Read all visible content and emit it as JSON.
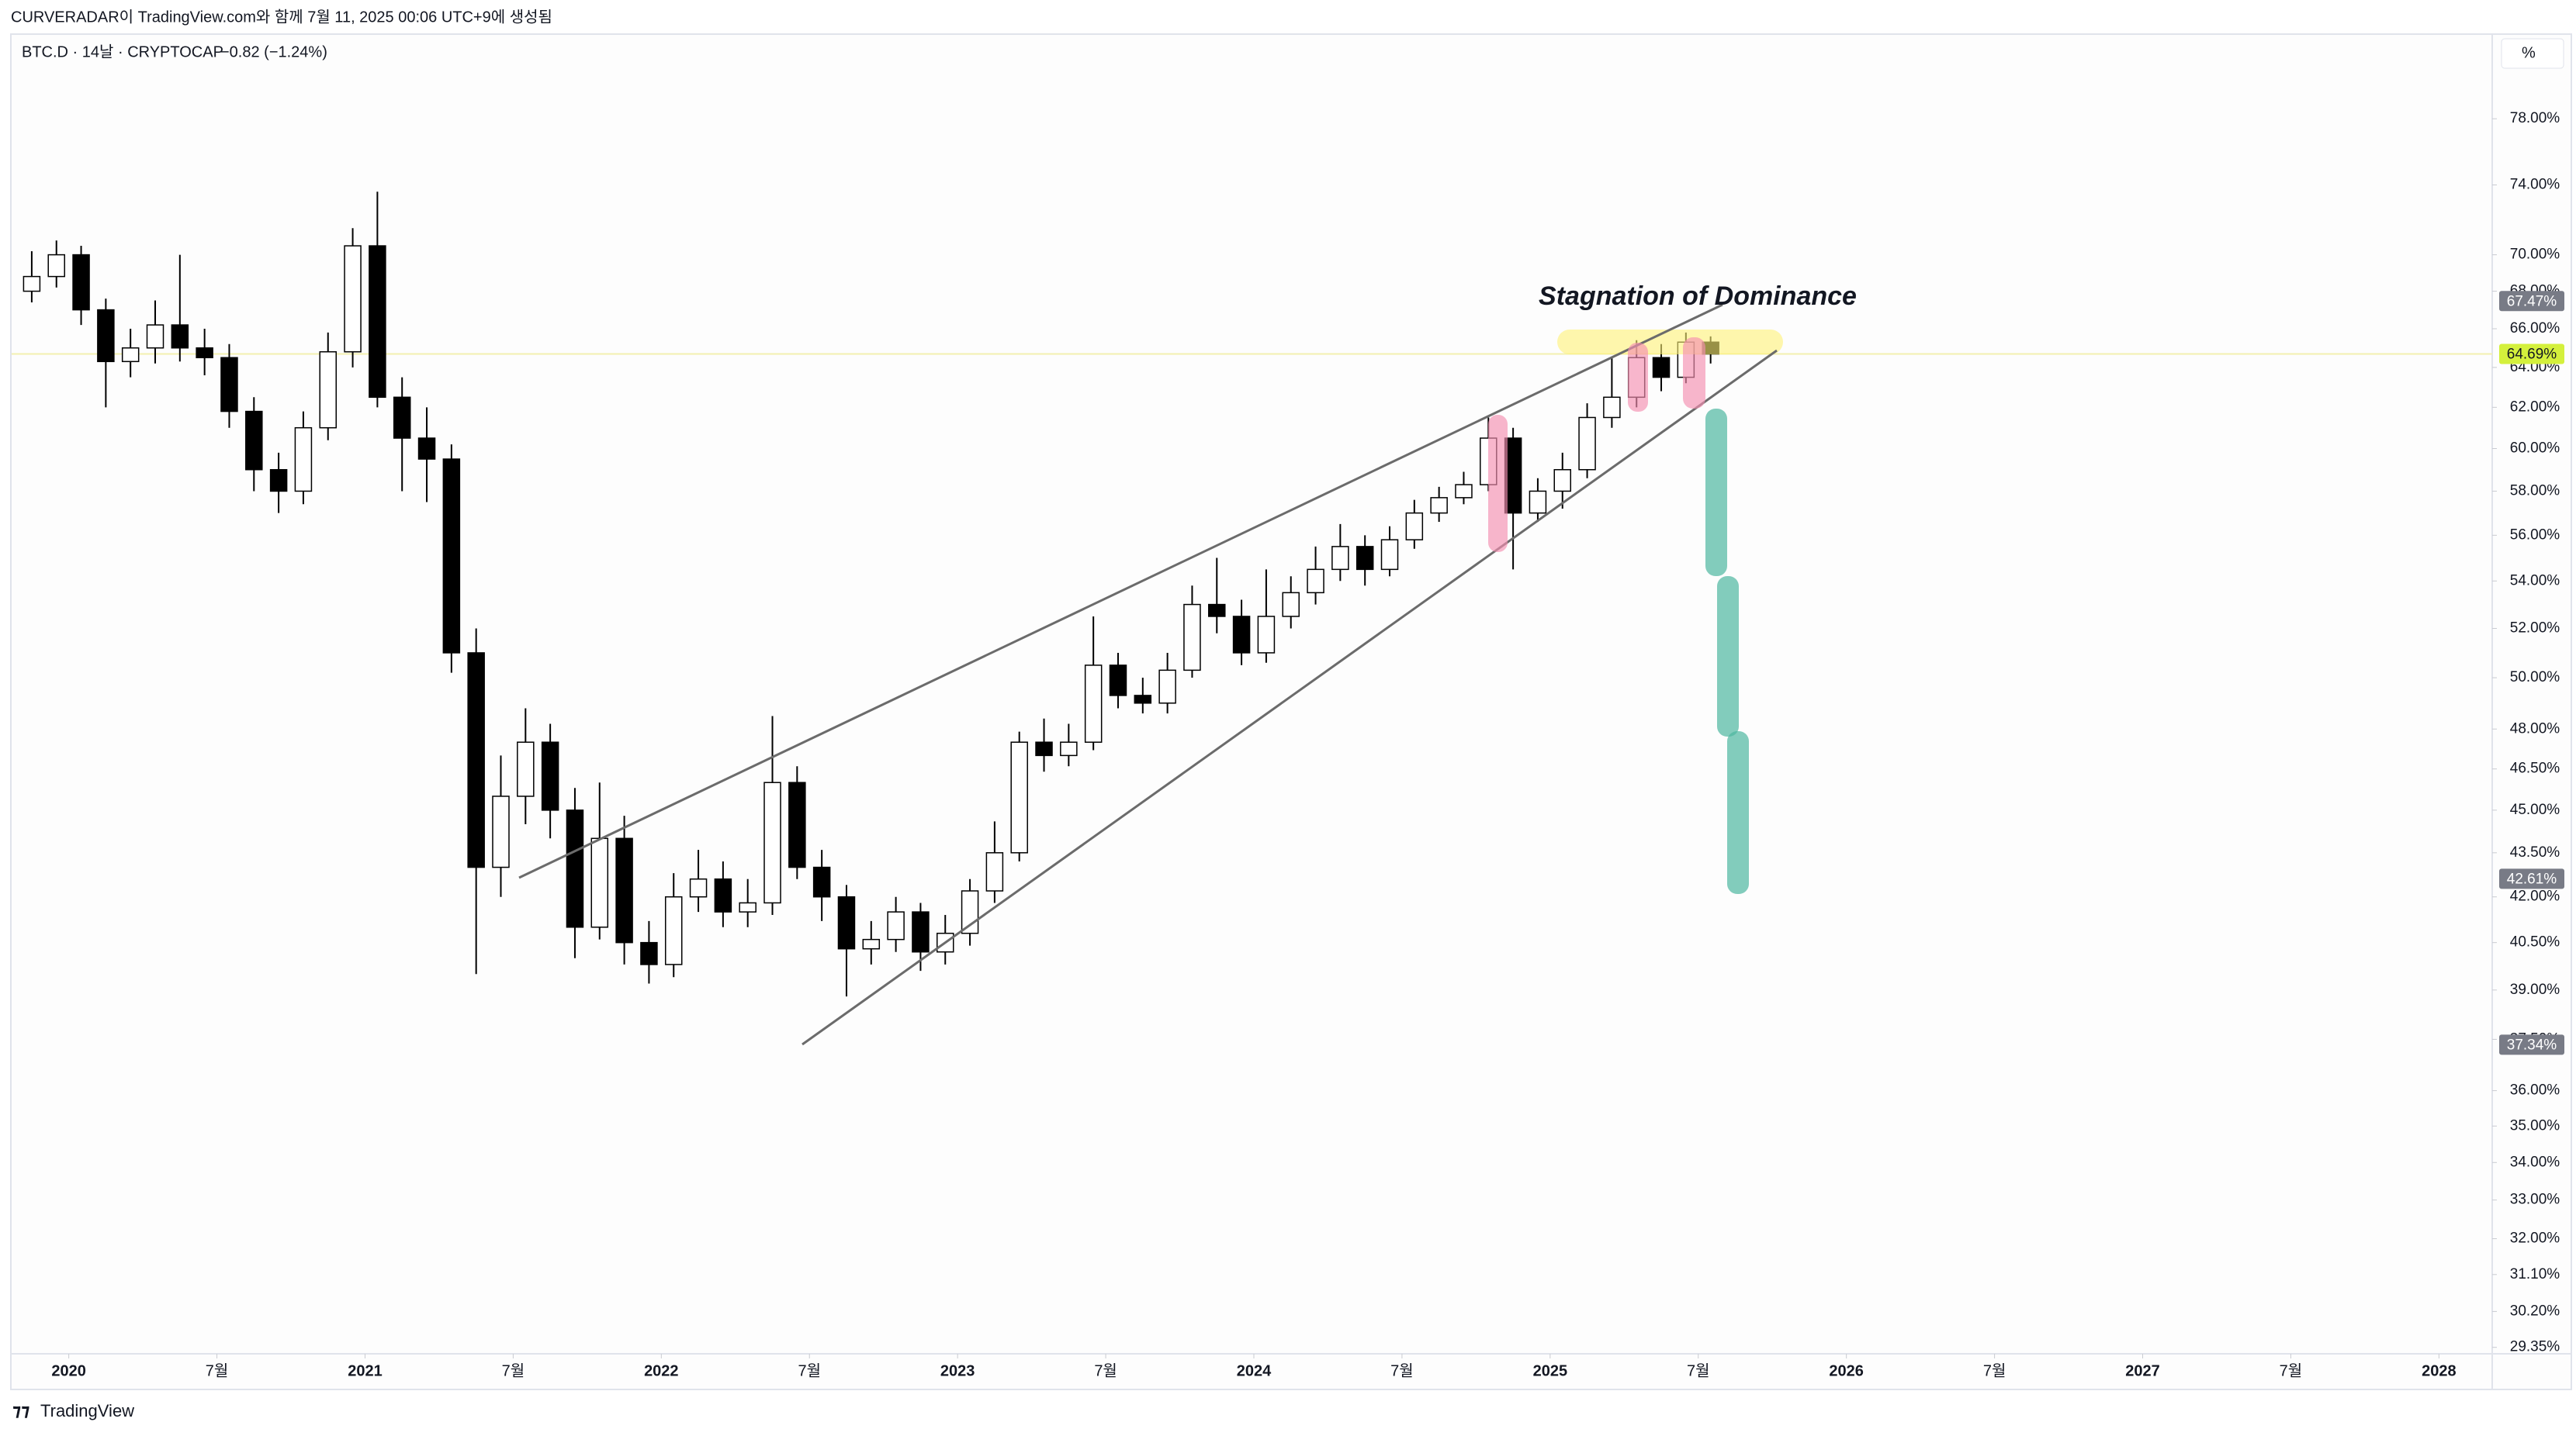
{
  "header": {
    "caption": "CURVERADAR이 TradingView.com와 함께 7월 11, 2025 00:06 UTC+9에 생성됨",
    "symbol": "BTC.D · 14날 · CRYPTOCAP",
    "change": "−0.82 (−1.24%)",
    "scale_button": "%"
  },
  "chart_data": {
    "type": "candlestick",
    "x": [
      "2019-11",
      "2019-12",
      "2020-01",
      "2020-02",
      "2020-03",
      "2020-04",
      "2020-05",
      "2020-06",
      "2020-07",
      "2020-08",
      "2020-09",
      "2020-10",
      "2020-11",
      "2020-12",
      "2021-01",
      "2021-02",
      "2021-03",
      "2021-04",
      "2021-05",
      "2021-06",
      "2021-07",
      "2021-08",
      "2021-09",
      "2021-10",
      "2021-11",
      "2021-12",
      "2022-01",
      "2022-02",
      "2022-03",
      "2022-04",
      "2022-05",
      "2022-06",
      "2022-07",
      "2022-08",
      "2022-09",
      "2022-10",
      "2022-11",
      "2022-12",
      "2023-01",
      "2023-02",
      "2023-03",
      "2023-04",
      "2023-05",
      "2023-06",
      "2023-07",
      "2023-08",
      "2023-09",
      "2023-10",
      "2023-11",
      "2023-12",
      "2024-01",
      "2024-02",
      "2024-03",
      "2024-04",
      "2024-05",
      "2024-06",
      "2024-07",
      "2024-08",
      "2024-09",
      "2024-10",
      "2024-11",
      "2024-12",
      "2025-01",
      "2025-02",
      "2025-03",
      "2025-04",
      "2025-05",
      "2025-06",
      "2025-07"
    ],
    "open": [
      68.0,
      68.8,
      70.0,
      67.0,
      64.3,
      65.0,
      66.2,
      65.0,
      64.5,
      61.8,
      59.0,
      58.0,
      61.0,
      64.8,
      70.5,
      62.5,
      60.5,
      59.5,
      51.0,
      43.0,
      45.5,
      47.5,
      45.0,
      41.0,
      44.0,
      40.5,
      39.8,
      42.0,
      42.6,
      41.5,
      41.8,
      46.0,
      43.0,
      42.0,
      40.3,
      40.6,
      41.5,
      40.2,
      40.8,
      42.2,
      43.5,
      47.5,
      47.0,
      47.5,
      50.5,
      49.3,
      49.0,
      50.3,
      53.0,
      52.5,
      51.0,
      52.5,
      53.5,
      54.5,
      55.5,
      54.5,
      55.8,
      57.0,
      57.7,
      58.3,
      60.5,
      57.0,
      58.0,
      59.0,
      61.5,
      62.5,
      64.5,
      63.5,
      65.3
    ],
    "high": [
      70.2,
      70.8,
      70.5,
      67.6,
      66.0,
      67.5,
      70.0,
      66.0,
      65.2,
      62.5,
      59.8,
      61.8,
      65.8,
      71.5,
      73.6,
      63.5,
      62.0,
      60.2,
      52.0,
      47.0,
      48.8,
      48.2,
      45.8,
      46.0,
      44.8,
      41.2,
      42.8,
      43.6,
      43.2,
      42.6,
      48.5,
      46.6,
      43.6,
      42.4,
      41.2,
      42.0,
      41.8,
      41.4,
      42.6,
      44.6,
      47.9,
      48.4,
      48.2,
      52.5,
      51.0,
      50.0,
      51.0,
      53.8,
      55.0,
      53.2,
      54.5,
      54.2,
      55.5,
      56.5,
      56.0,
      56.4,
      57.6,
      58.2,
      58.9,
      61.5,
      61.0,
      58.6,
      59.8,
      62.2,
      64.5,
      65.4,
      65.2,
      65.8,
      65.6
    ],
    "low": [
      67.4,
      68.2,
      66.2,
      62.0,
      63.5,
      64.2,
      64.3,
      63.6,
      61.0,
      58.0,
      57.0,
      57.4,
      60.4,
      64.0,
      62.0,
      58.0,
      57.5,
      50.2,
      39.5,
      42.0,
      44.5,
      44.0,
      40.0,
      40.6,
      39.8,
      39.2,
      39.4,
      41.5,
      41.0,
      41.0,
      41.4,
      42.6,
      41.2,
      38.8,
      39.8,
      40.2,
      39.6,
      39.8,
      40.4,
      41.8,
      43.2,
      46.4,
      46.6,
      47.2,
      48.8,
      48.6,
      48.6,
      50.0,
      51.8,
      50.5,
      50.6,
      52.0,
      53.0,
      54.0,
      53.8,
      54.2,
      55.4,
      56.6,
      57.4,
      58.0,
      54.5,
      56.6,
      57.2,
      58.6,
      61.0,
      62.0,
      62.8,
      63.2,
      64.2
    ],
    "close": [
      68.8,
      70.0,
      67.0,
      64.3,
      65.0,
      66.2,
      65.0,
      64.5,
      61.8,
      59.0,
      58.0,
      61.0,
      64.8,
      70.5,
      62.5,
      60.5,
      59.5,
      51.0,
      43.0,
      45.5,
      47.5,
      45.0,
      41.0,
      44.0,
      40.5,
      39.8,
      42.0,
      42.6,
      41.5,
      41.8,
      46.0,
      43.0,
      42.0,
      40.3,
      40.6,
      41.5,
      40.2,
      40.8,
      42.2,
      43.5,
      47.5,
      47.0,
      47.5,
      50.5,
      49.3,
      49.0,
      50.3,
      53.0,
      52.5,
      51.0,
      52.5,
      53.5,
      54.5,
      55.5,
      54.5,
      55.8,
      57.0,
      57.7,
      58.3,
      60.5,
      57.0,
      58.0,
      59.0,
      61.5,
      62.5,
      64.5,
      63.5,
      65.3,
      64.69
    ],
    "up_color": "#ffffff",
    "down_color": "#000000",
    "xlim": [
      "2019-11",
      "2028-03"
    ],
    "xticks": [
      {
        "value": "2020-01",
        "label": "2020"
      },
      {
        "value": "2020-07",
        "label": "7월"
      },
      {
        "value": "2021-01",
        "label": "2021"
      },
      {
        "value": "2021-07",
        "label": "7월"
      },
      {
        "value": "2022-01",
        "label": "2022"
      },
      {
        "value": "2022-07",
        "label": "7월"
      },
      {
        "value": "2023-01",
        "label": "2023"
      },
      {
        "value": "2023-07",
        "label": "7월"
      },
      {
        "value": "2024-01",
        "label": "2024"
      },
      {
        "value": "2024-07",
        "label": "7월"
      },
      {
        "value": "2025-01",
        "label": "2025"
      },
      {
        "value": "2025-07",
        "label": "7월"
      },
      {
        "value": "2026-01",
        "label": "2026"
      },
      {
        "value": "2026-07",
        "label": "7월"
      },
      {
        "value": "2027-01",
        "label": "2027"
      },
      {
        "value": "2027-07",
        "label": "7월"
      },
      {
        "value": "2028-01",
        "label": "2028"
      }
    ],
    "ylim": [
      29.2,
      80.6
    ],
    "log_scale": true,
    "grid": false,
    "yticks": [
      {
        "value": 78,
        "label": "78.00%"
      },
      {
        "value": 74,
        "label": "74.00%"
      },
      {
        "value": 70,
        "label": "70.00%"
      },
      {
        "value": 68,
        "label": "68.00%"
      },
      {
        "value": 66,
        "label": "66.00%"
      },
      {
        "value": 64,
        "label": "64.00%"
      },
      {
        "value": 62,
        "label": "62.00%"
      },
      {
        "value": 60,
        "label": "60.00%"
      },
      {
        "value": 58,
        "label": "58.00%"
      },
      {
        "value": 56,
        "label": "56.00%"
      },
      {
        "value": 54,
        "label": "54.00%"
      },
      {
        "value": 52,
        "label": "52.00%"
      },
      {
        "value": 50,
        "label": "50.00%"
      },
      {
        "value": 48,
        "label": "48.00%"
      },
      {
        "value": 46.5,
        "label": "46.50%"
      },
      {
        "value": 45,
        "label": "45.00%"
      },
      {
        "value": 43.5,
        "label": "43.50%"
      },
      {
        "value": 42,
        "label": "42.00%"
      },
      {
        "value": 40.5,
        "label": "40.50%"
      },
      {
        "value": 39,
        "label": "39.00%"
      },
      {
        "value": 37.5,
        "label": "37.50%"
      },
      {
        "value": 36,
        "label": "36.00%"
      },
      {
        "value": 35,
        "label": "35.00%"
      },
      {
        "value": 34,
        "label": "34.00%"
      },
      {
        "value": 33,
        "label": "33.00%"
      },
      {
        "value": 32,
        "label": "32.00%"
      },
      {
        "value": 31.1,
        "label": "31.10%"
      },
      {
        "value": 30.2,
        "label": "30.20%"
      },
      {
        "value": 29.35,
        "label": "29.35%"
      }
    ],
    "price_labels": [
      {
        "value": 67.47,
        "label": "67.47%",
        "color": "#787b86",
        "text_color": "#ffffff"
      },
      {
        "value": 64.69,
        "label": "64.69%",
        "color": "#d4f03c",
        "text_color": "#131722",
        "line_color": "#f3f0b0"
      },
      {
        "value": 42.61,
        "label": "42.61%",
        "color": "#787b86",
        "text_color": "#ffffff"
      },
      {
        "value": 37.34,
        "label": "37.34%",
        "color": "#787b86",
        "text_color": "#ffffff"
      }
    ],
    "annotation": "Stagnation of Dominance"
  },
  "footer": {
    "brand": "TradingView"
  }
}
